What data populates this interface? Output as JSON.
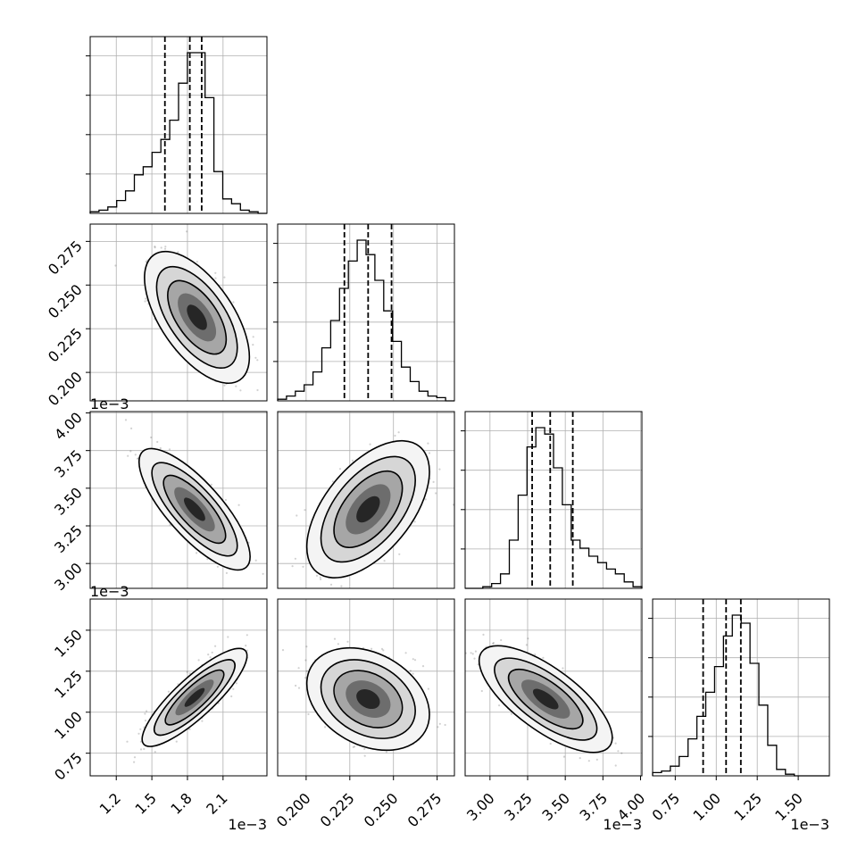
{
  "chart_data": {
    "type": "corner",
    "grid": true,
    "parameters": [
      {
        "index": 0,
        "range": [
          0.00098,
          0.00247
        ],
        "ticks": [
          0.0012,
          0.0015,
          0.0018,
          0.0021
        ],
        "tick_labels": [
          "1.2",
          "1.5",
          "1.8",
          "2.1"
        ],
        "offset_text": "1e−3",
        "quantiles": [
          0.00161,
          0.00182,
          0.00192
        ]
      },
      {
        "index": 1,
        "range": [
          0.1837,
          0.2849
        ],
        "ticks": [
          0.2,
          0.225,
          0.25,
          0.275
        ],
        "tick_labels": [
          "0.200",
          "0.225",
          "0.250",
          "0.275"
        ],
        "offset_text": "",
        "quantiles": [
          0.2219,
          0.2355,
          0.2489
        ]
      },
      {
        "index": 2,
        "range": [
          0.002835,
          0.004009
        ],
        "ticks": [
          0.003,
          0.00325,
          0.0035,
          0.00375,
          0.004
        ],
        "tick_labels": [
          "3.00",
          "3.25",
          "3.50",
          "3.75",
          "4.00"
        ],
        "offset_text": "1e−3",
        "quantiles": [
          0.00328,
          0.0034,
          0.00355
        ]
      },
      {
        "index": 3,
        "range": [
          0.000612,
          0.00169
        ],
        "ticks": [
          0.00075,
          0.001,
          0.00125,
          0.0015
        ],
        "tick_labels": [
          "0.75",
          "1.00",
          "1.25",
          "1.50"
        ],
        "offset_text": "1e−3",
        "quantiles": [
          0.00092,
          0.00106,
          0.00115
        ]
      }
    ],
    "histograms": [
      {
        "param": 0,
        "edges_start": 0.00098,
        "bin_width": 7.45e-05,
        "counts": [
          1,
          2,
          4,
          8,
          14,
          24,
          29,
          38,
          46,
          58,
          81,
          100,
          100,
          72,
          26,
          9,
          6,
          2,
          1,
          0
        ]
      },
      {
        "param": 1,
        "edges_start": 0.1837,
        "bin_width": 0.00506,
        "counts": [
          1,
          3,
          6,
          10,
          18,
          33,
          50,
          70,
          87,
          100,
          91,
          75,
          56,
          37,
          21,
          12,
          6,
          3,
          2,
          0
        ]
      },
      {
        "param": 2,
        "edges_start": 0.002835,
        "bin_width": 5.87e-05,
        "counts": [
          0,
          0,
          1,
          3,
          9,
          30,
          58,
          88,
          100,
          96,
          75,
          52,
          30,
          25,
          20,
          16,
          12,
          9,
          4,
          1
        ]
      },
      {
        "param": 3,
        "edges_start": 0.000612,
        "bin_width": 5.4e-05,
        "counts": [
          2,
          3,
          6,
          12,
          23,
          37,
          52,
          68,
          87,
          100,
          95,
          70,
          44,
          19,
          4,
          1,
          0,
          0,
          0,
          0
        ]
      }
    ],
    "panels_2d": [
      {
        "x_param": 0,
        "y_param": 1,
        "center": [
          0.00188,
          0.2315
        ],
        "sx": 0.00017,
        "sy": 0.0145,
        "rho": -0.6
      },
      {
        "x_param": 0,
        "y_param": 2,
        "center": [
          0.00186,
          0.00336
        ],
        "sx": 0.00018,
        "sy": 0.000155,
        "rho": -0.78
      },
      {
        "x_param": 1,
        "y_param": 2,
        "center": [
          0.2355,
          0.00336
        ],
        "sx": 0.0135,
        "sy": 0.000175,
        "rho": 0.55
      },
      {
        "x_param": 0,
        "y_param": 3,
        "center": [
          0.00186,
          0.00109
        ],
        "sx": 0.00017,
        "sy": 0.000115,
        "rho": 0.85
      },
      {
        "x_param": 1,
        "y_param": 3,
        "center": [
          0.2355,
          0.00108
        ],
        "sx": 0.0135,
        "sy": 0.00012,
        "rho": -0.3
      },
      {
        "x_param": 2,
        "y_param": 3,
        "center": [
          0.00337,
          0.00108
        ],
        "sx": 0.00017,
        "sy": 0.000125,
        "rho": -0.72
      }
    ]
  }
}
